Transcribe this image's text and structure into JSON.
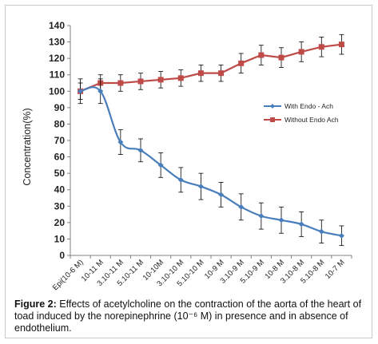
{
  "chart_data": {
    "type": "line",
    "categories": [
      "Epi(10-6 M)",
      "10-11 M",
      "3.10-11 M",
      "5.10-11 M",
      "10-10M",
      "3.10-10 M",
      "5.10-10 M",
      "10-9 M",
      "3.10-9 M",
      "5.10-9 M",
      "10-8 M",
      "3.10-8 M",
      "5.10-8 M",
      "10-7 M"
    ],
    "ylabel": "Concentration(%)",
    "xlabel": "",
    "ylim": [
      0,
      140
    ],
    "yticks": [
      0,
      10,
      20,
      30,
      40,
      50,
      60,
      70,
      80,
      90,
      100,
      110,
      120,
      130,
      140
    ],
    "grid": false,
    "legend_position": "right",
    "series": [
      {
        "name": "With Endo - Ach",
        "color": "#4a7ebb",
        "marker": "diamond",
        "smooth": true,
        "values": [
          100,
          100,
          69,
          64,
          55,
          46,
          42,
          37,
          29.5,
          24,
          21.5,
          19,
          14.5,
          12
        ],
        "errors": [
          7.5,
          7.5,
          7.5,
          7,
          7.5,
          7.5,
          8,
          7.5,
          8,
          8,
          8,
          7.5,
          7,
          6
        ]
      },
      {
        "name": "Without Endo Ach",
        "color": "#be4b48",
        "marker": "square",
        "smooth": false,
        "values": [
          100,
          105,
          105,
          106,
          107,
          108,
          111,
          111,
          117,
          122,
          120.5,
          124,
          127,
          128.5
        ],
        "errors": [
          5,
          5,
          5,
          5,
          5,
          5,
          5,
          5,
          6,
          6,
          6,
          6,
          6,
          6
        ]
      }
    ]
  },
  "caption": {
    "label": "Figure 2:",
    "text": " Effects of acetylcholine on the contraction of the aorta of the heart of toad induced by the norepinephrine (10⁻⁶ M) in presence and in absence of endothelium."
  }
}
